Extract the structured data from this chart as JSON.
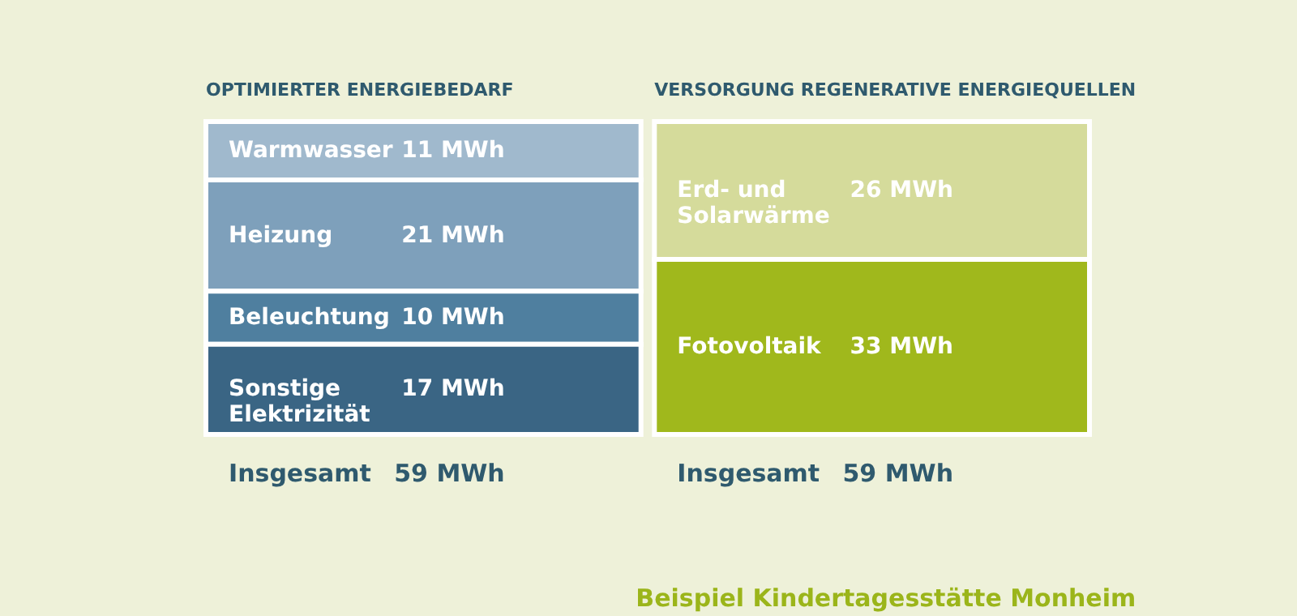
{
  "chart_data": {
    "type": "other",
    "title": "Beispiel Kindertagesstätte Monheim",
    "categories": [
      "OPTIMIERTER ENERGIEBEDARF",
      "VERSORGUNG REGENERATIVE ENERGIEQUELLEN"
    ],
    "series": [
      {
        "name": "Warmwasser",
        "color": "#a0b9cd",
        "values": [
          11,
          null
        ],
        "value_labels": [
          "11 MWh",
          null
        ]
      },
      {
        "name": "Heizung",
        "color": "#7ea0bb",
        "values": [
          21,
          null
        ],
        "value_labels": [
          "21 MWh",
          null
        ]
      },
      {
        "name": "Beleuchtung",
        "color": "#4f7f9f",
        "values": [
          10,
          null
        ],
        "value_labels": [
          "10 MWh",
          null
        ]
      },
      {
        "name": "Sonstige\nElektrizität",
        "color": "#3a6584",
        "values": [
          17,
          null
        ],
        "value_labels": [
          "17 MWh",
          null
        ]
      },
      {
        "name": "Erd- und\nSolarwärme",
        "color": "#d5db9b",
        "values": [
          null,
          26
        ],
        "value_labels": [
          null,
          "26 MWh"
        ]
      },
      {
        "name": "Fotovoltaik",
        "color": "#a0b81c",
        "values": [
          null,
          33
        ],
        "value_labels": [
          null,
          "33 MWh"
        ]
      }
    ],
    "totals": [
      "59 MWh",
      "59 MWh"
    ],
    "annotations": [
      {
        "text": "Insgesamt",
        "x": "OPTIMIERTER ENERGIEBEDARF"
      },
      {
        "text": "Insgesamt",
        "x": "VERSORGUNG REGENERATIVE ENERGIEQUELLEN"
      }
    ]
  }
}
